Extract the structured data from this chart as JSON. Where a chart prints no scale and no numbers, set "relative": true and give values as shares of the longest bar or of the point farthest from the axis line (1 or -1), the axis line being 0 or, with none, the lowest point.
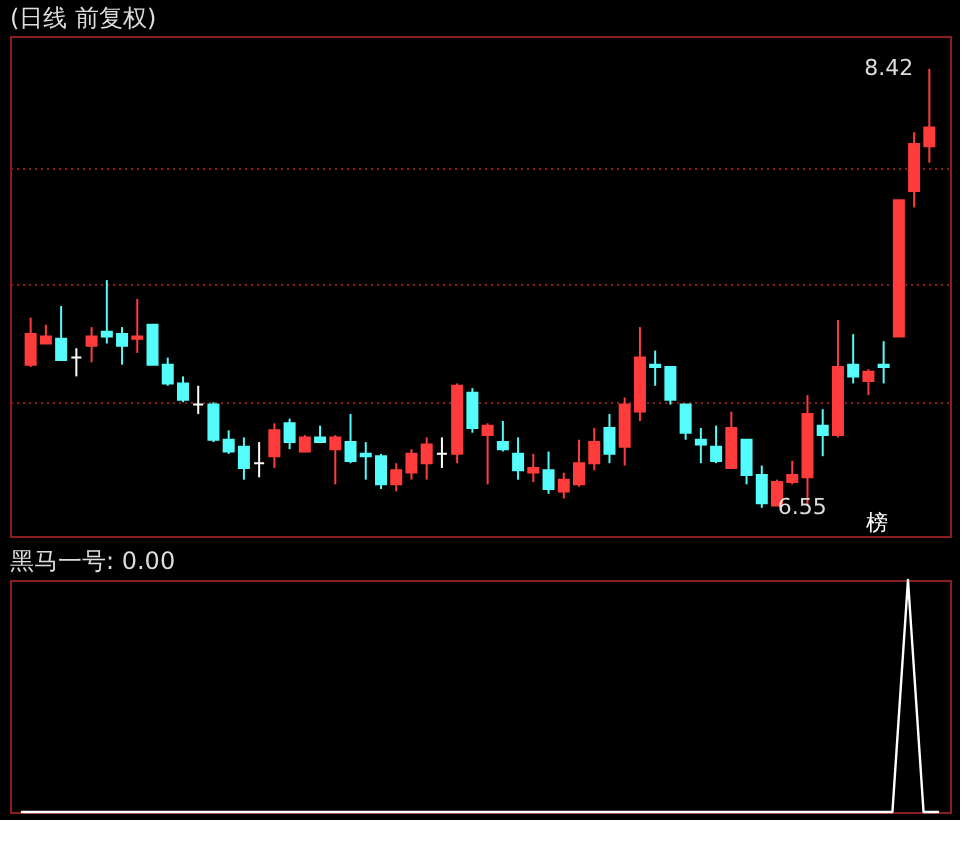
{
  "chart_data": [
    {
      "type": "candlestick",
      "title": "(日线 前复权)",
      "categories": [
        null,
        null,
        null,
        null,
        null,
        null,
        null,
        null,
        null,
        null,
        null,
        null,
        null,
        null,
        null,
        null,
        null,
        null,
        null,
        null,
        null,
        null,
        null,
        null,
        null,
        null,
        null,
        null,
        null,
        null,
        null,
        null,
        null,
        null,
        null,
        null,
        null,
        null,
        null,
        null,
        null,
        null,
        null,
        null,
        null,
        null,
        null,
        null,
        null,
        null,
        null,
        null,
        null,
        null,
        null,
        null,
        null,
        null,
        null,
        null
      ],
      "ohlc": [
        [
          7.16,
          7.36,
          7.15,
          7.29
        ],
        [
          7.25,
          7.33,
          7.25,
          7.28
        ],
        [
          7.27,
          7.41,
          7.18,
          7.18
        ],
        [
          7.19,
          7.23,
          7.11,
          7.19
        ],
        [
          7.24,
          7.32,
          7.17,
          7.28
        ],
        [
          7.3,
          7.52,
          7.25,
          7.28
        ],
        [
          7.29,
          7.32,
          7.16,
          7.24
        ],
        [
          7.27,
          7.44,
          7.21,
          7.28
        ],
        [
          7.33,
          7.33,
          7.16,
          7.16
        ],
        [
          7.16,
          7.19,
          7.07,
          7.08
        ],
        [
          7.08,
          7.11,
          7.0,
          7.01
        ],
        [
          6.99,
          7.07,
          6.95,
          6.99
        ],
        [
          6.99,
          7.0,
          6.83,
          6.84
        ],
        [
          6.84,
          6.88,
          6.78,
          6.79
        ],
        [
          6.81,
          6.85,
          6.67,
          6.72
        ],
        [
          6.74,
          6.83,
          6.68,
          6.74
        ],
        [
          6.77,
          6.91,
          6.72,
          6.88
        ],
        [
          6.91,
          6.93,
          6.8,
          6.83
        ],
        [
          6.79,
          6.86,
          6.79,
          6.85
        ],
        [
          6.85,
          6.9,
          6.83,
          6.83
        ],
        [
          6.8,
          6.86,
          6.65,
          6.85
        ],
        [
          6.83,
          6.95,
          6.74,
          6.75
        ],
        [
          6.78,
          6.83,
          6.67,
          6.77
        ],
        [
          6.77,
          6.78,
          6.63,
          6.65
        ],
        [
          6.65,
          6.74,
          6.62,
          6.71
        ],
        [
          6.7,
          6.8,
          6.67,
          6.78
        ],
        [
          6.74,
          6.85,
          6.67,
          6.82
        ],
        [
          6.78,
          6.85,
          6.72,
          6.78
        ],
        [
          6.78,
          7.08,
          6.74,
          7.07
        ],
        [
          7.04,
          7.06,
          6.87,
          6.89
        ],
        [
          6.86,
          6.91,
          6.65,
          6.9
        ],
        [
          6.83,
          6.92,
          6.79,
          6.8
        ],
        [
          6.78,
          6.85,
          6.67,
          6.71
        ],
        [
          6.7,
          6.78,
          6.66,
          6.72
        ],
        [
          6.71,
          6.79,
          6.61,
          6.63
        ],
        [
          6.62,
          6.7,
          6.59,
          6.67
        ],
        [
          6.65,
          6.84,
          6.64,
          6.74
        ],
        [
          6.74,
          6.89,
          6.71,
          6.83
        ],
        [
          6.89,
          6.95,
          6.74,
          6.78
        ],
        [
          6.81,
          7.02,
          6.73,
          6.99
        ],
        [
          6.96,
          7.32,
          6.92,
          7.19
        ],
        [
          7.16,
          7.22,
          7.07,
          7.15
        ],
        [
          7.15,
          7.15,
          6.99,
          7.01
        ],
        [
          6.99,
          6.99,
          6.84,
          6.87
        ],
        [
          6.84,
          6.89,
          6.74,
          6.82
        ],
        [
          6.81,
          6.9,
          6.74,
          6.75
        ],
        [
          6.72,
          6.96,
          6.72,
          6.89
        ],
        [
          6.84,
          6.84,
          6.65,
          6.69
        ],
        [
          6.69,
          6.73,
          6.55,
          6.57
        ],
        [
          6.56,
          6.67,
          6.56,
          6.66
        ],
        [
          6.66,
          6.75,
          6.65,
          6.69
        ],
        [
          6.68,
          7.03,
          6.56,
          6.95
        ],
        [
          6.9,
          6.97,
          6.77,
          6.86
        ],
        [
          6.86,
          7.35,
          6.85,
          7.15
        ],
        [
          7.16,
          7.29,
          7.08,
          7.11
        ],
        [
          7.09,
          7.14,
          7.03,
          7.13
        ],
        [
          7.16,
          7.26,
          7.08,
          7.15
        ],
        [
          7.28,
          7.86,
          7.28,
          7.86
        ],
        [
          7.9,
          8.15,
          7.83,
          8.1
        ],
        [
          8.09,
          8.42,
          8.02,
          8.17
        ]
      ],
      "colors": [
        "#ff3c3c",
        "#ff3c3c",
        "#54fcfc",
        "#ffffff",
        "#ff3c3c",
        "#54fcfc",
        "#54fcfc",
        "#ff3c3c",
        "#54fcfc",
        "#54fcfc",
        "#54fcfc",
        "#ffffff",
        "#54fcfc",
        "#54fcfc",
        "#54fcfc",
        "#ffffff",
        "#ff3c3c",
        "#54fcfc",
        "#ff3c3c",
        "#54fcfc",
        "#ff3c3c",
        "#54fcfc",
        "#54fcfc",
        "#54fcfc",
        "#ff3c3c",
        "#ff3c3c",
        "#ff3c3c",
        "#ffffff",
        "#ff3c3c",
        "#54fcfc",
        "#ff3c3c",
        "#54fcfc",
        "#54fcfc",
        "#ff3c3c",
        "#54fcfc",
        "#ff3c3c",
        "#ff3c3c",
        "#ff3c3c",
        "#54fcfc",
        "#ff3c3c",
        "#ff3c3c",
        "#54fcfc",
        "#54fcfc",
        "#54fcfc",
        "#54fcfc",
        "#54fcfc",
        "#ff3c3c",
        "#54fcfc",
        "#54fcfc",
        "#ff3c3c",
        "#ff3c3c",
        "#ff3c3c",
        "#54fcfc",
        "#ff3c3c",
        "#54fcfc",
        "#ff3c3c",
        "#54fcfc",
        "#ff3c3c",
        "#ff3c3c",
        "#ff3c3c"
      ],
      "ylim": [
        6.43,
        8.56
      ],
      "yticks": [
        {
          "value": 7,
          "label": null
        },
        {
          "value": 7.5,
          "label": null
        },
        {
          "value": 8,
          "label": null
        }
      ],
      "grid": "y",
      "tick_labels": false,
      "annotations": [
        "8.42",
        "6.55",
        "榜"
      ]
    },
    {
      "type": "line",
      "title": "黑马一号: 0.00",
      "relative": true,
      "categories": [
        null,
        null,
        null,
        null,
        null,
        null,
        null,
        null,
        null,
        null,
        null,
        null,
        null,
        null,
        null,
        null,
        null,
        null,
        null,
        null,
        null,
        null,
        null,
        null,
        null,
        null,
        null,
        null,
        null,
        null,
        null,
        null,
        null,
        null,
        null,
        null,
        null,
        null,
        null,
        null,
        null,
        null,
        null,
        null,
        null,
        null,
        null,
        null,
        null,
        null,
        null,
        null,
        null,
        null,
        null,
        null,
        null,
        null,
        null,
        null
      ],
      "color": "#ffffff",
      "values": [
        0,
        0,
        0,
        0,
        0,
        0,
        0,
        0,
        0,
        0,
        0,
        0,
        0,
        0,
        0,
        0,
        0,
        0,
        0,
        0,
        0,
        0,
        0,
        0,
        0,
        0,
        0,
        0,
        0,
        0,
        0,
        0,
        0,
        0,
        0,
        0,
        0,
        0,
        0,
        0,
        0,
        0,
        0,
        0,
        0,
        0,
        0,
        0,
        0,
        0,
        0,
        0,
        0,
        0,
        0,
        0,
        0,
        1,
        0,
        0
      ]
    }
  ]
}
